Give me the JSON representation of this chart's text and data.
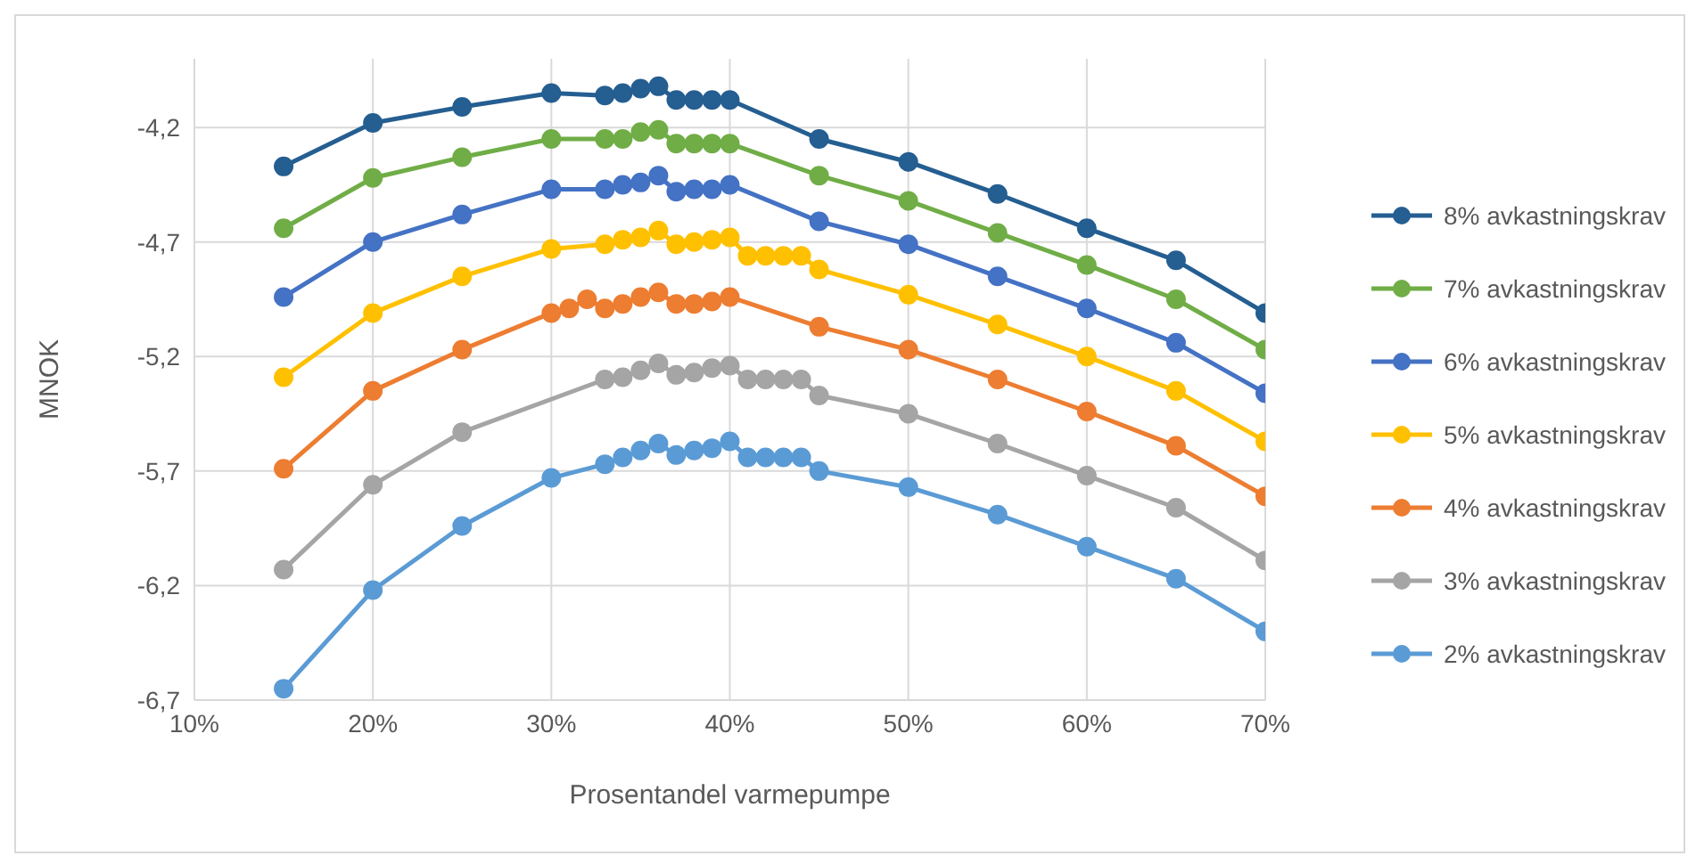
{
  "chart_data": {
    "type": "line",
    "xlabel": "Prosentandel varmepumpe",
    "ylabel": "MNOK",
    "xlim": [
      10,
      70
    ],
    "xticks": [
      {
        "value": 10,
        "label": "10%"
      },
      {
        "value": 20,
        "label": "20%"
      },
      {
        "value": 30,
        "label": "30%"
      },
      {
        "value": 40,
        "label": "40%"
      },
      {
        "value": 50,
        "label": "50%"
      },
      {
        "value": 60,
        "label": "60%"
      },
      {
        "value": 70,
        "label": "70%"
      }
    ],
    "ylim": [
      -6.7,
      -3.9
    ],
    "yticks": [
      {
        "value": -6.7,
        "label": "-6,7"
      },
      {
        "value": -6.2,
        "label": "-6,2"
      },
      {
        "value": -5.7,
        "label": "-5,7"
      },
      {
        "value": -5.2,
        "label": "-5,2"
      },
      {
        "value": -4.7,
        "label": "-4,7"
      },
      {
        "value": -4.2,
        "label": "-4,2"
      }
    ],
    "grid": true,
    "legend": "right",
    "marker": "circle",
    "line_style": "solid",
    "series": [
      {
        "name": "8% avkastningskrav",
        "color": "#255e91",
        "x": [
          15,
          20,
          25,
          30,
          33,
          34,
          35,
          36,
          37,
          38,
          39,
          40,
          45,
          50,
          55,
          60,
          65,
          70
        ],
        "values": [
          -4.37,
          -4.18,
          -4.11,
          -4.05,
          -4.06,
          -4.05,
          -4.03,
          -4.02,
          -4.08,
          -4.08,
          -4.08,
          -4.08,
          -4.25,
          -4.35,
          -4.49,
          -4.64,
          -4.78,
          -5.01
        ]
      },
      {
        "name": "7% avkastningskrav",
        "color": "#70ad47",
        "x": [
          15,
          20,
          25,
          30,
          33,
          34,
          35,
          36,
          37,
          38,
          39,
          40,
          45,
          50,
          55,
          60,
          65,
          70
        ],
        "values": [
          -4.64,
          -4.42,
          -4.33,
          -4.25,
          -4.25,
          -4.25,
          -4.22,
          -4.21,
          -4.27,
          -4.27,
          -4.27,
          -4.27,
          -4.41,
          -4.52,
          -4.66,
          -4.8,
          -4.95,
          -5.17
        ]
      },
      {
        "name": "6% avkastningskrav",
        "color": "#4472c4",
        "x": [
          15,
          20,
          25,
          30,
          33,
          34,
          35,
          36,
          37,
          38,
          39,
          40,
          45,
          50,
          55,
          60,
          65,
          70
        ],
        "values": [
          -4.94,
          -4.7,
          -4.58,
          -4.47,
          -4.47,
          -4.45,
          -4.44,
          -4.41,
          -4.48,
          -4.47,
          -4.47,
          -4.45,
          -4.61,
          -4.71,
          -4.85,
          -4.99,
          -5.14,
          -5.36
        ]
      },
      {
        "name": "5% avkastningskrav",
        "color": "#ffc000",
        "x": [
          15,
          20,
          25,
          30,
          33,
          34,
          35,
          36,
          37,
          38,
          39,
          40,
          41,
          42,
          43,
          44,
          45,
          50,
          55,
          60,
          65,
          70
        ],
        "values": [
          -5.29,
          -5.01,
          -4.85,
          -4.73,
          -4.71,
          -4.69,
          -4.68,
          -4.65,
          -4.71,
          -4.7,
          -4.69,
          -4.68,
          -4.76,
          -4.76,
          -4.76,
          -4.76,
          -4.82,
          -4.93,
          -5.06,
          -5.2,
          -5.35,
          -5.57
        ]
      },
      {
        "name": "4% avkastningskrav",
        "color": "#ed7d31",
        "x": [
          15,
          20,
          25,
          30,
          31,
          32,
          33,
          34,
          35,
          36,
          37,
          38,
          39,
          40,
          45,
          50,
          55,
          60,
          65,
          70
        ],
        "values": [
          -5.69,
          -5.35,
          -5.17,
          -5.01,
          -4.99,
          -4.95,
          -4.99,
          -4.97,
          -4.94,
          -4.92,
          -4.97,
          -4.97,
          -4.96,
          -4.94,
          -5.07,
          -5.17,
          -5.3,
          -5.44,
          -5.59,
          -5.81
        ]
      },
      {
        "name": "3% avkastningskrav",
        "color": "#a5a5a5",
        "x": [
          15,
          20,
          25,
          33,
          34,
          35,
          36,
          37,
          38,
          39,
          40,
          41,
          42,
          43,
          44,
          45,
          50,
          55,
          60,
          65,
          70
        ],
        "values": [
          -6.13,
          -5.76,
          -5.53,
          -5.3,
          -5.29,
          -5.26,
          -5.23,
          -5.28,
          -5.27,
          -5.25,
          -5.24,
          -5.3,
          -5.3,
          -5.3,
          -5.3,
          -5.37,
          -5.45,
          -5.58,
          -5.72,
          -5.86,
          -6.09
        ]
      },
      {
        "name": "2% avkastningskrav",
        "color": "#5b9bd5",
        "x": [
          15,
          20,
          25,
          30,
          33,
          34,
          35,
          36,
          37,
          38,
          39,
          40,
          41,
          42,
          43,
          44,
          45,
          50,
          55,
          60,
          65,
          70
        ],
        "values": [
          -6.65,
          -6.22,
          -5.94,
          -5.73,
          -5.67,
          -5.64,
          -5.61,
          -5.58,
          -5.63,
          -5.61,
          -5.6,
          -5.57,
          -5.64,
          -5.64,
          -5.64,
          -5.64,
          -5.7,
          -5.77,
          -5.89,
          -6.03,
          -6.17,
          -6.4
        ]
      }
    ]
  }
}
